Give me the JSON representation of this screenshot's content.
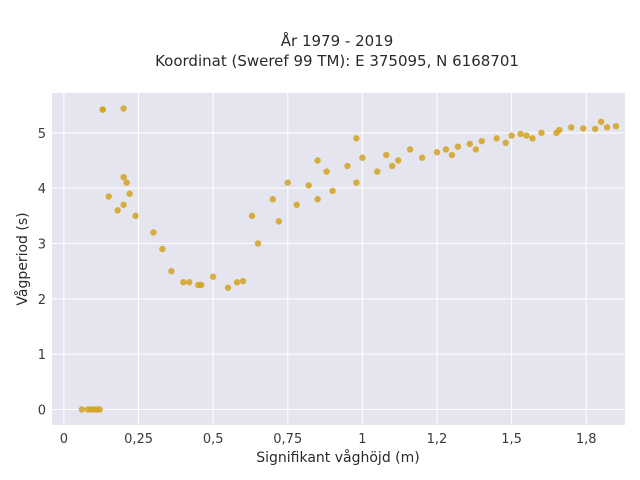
{
  "chart_data": {
    "type": "scatter",
    "title_line1": "År 1979 - 2019",
    "title_line2": "Koordinat (Sweref 99 TM): E 375095, N 6168701",
    "xlabel": "Signifikant våghöjd (m)",
    "ylabel": "Vågperiod (s)",
    "xlim": [
      -0.04,
      1.88
    ],
    "ylim": [
      -0.28,
      5.72
    ],
    "x_ticks": [
      0,
      0.25,
      0.5,
      0.75,
      1,
      1.25,
      1.5,
      1.75
    ],
    "x_tick_labels": [
      "0",
      "0,25",
      "0,5",
      "0,75",
      "1",
      "1,2",
      "1,5",
      "1,8"
    ],
    "y_ticks": [
      0,
      1,
      2,
      3,
      4,
      5
    ],
    "y_tick_labels": [
      "0",
      "1",
      "2",
      "3",
      "4",
      "5"
    ],
    "grid": true,
    "colors": {
      "marker": "#d4a21f",
      "plot_bg": "#e5e5ef",
      "grid": "#ffffff"
    },
    "points_x": [
      0.06,
      0.08,
      0.09,
      0.1,
      0.11,
      0.12,
      0.13,
      0.13,
      0.2,
      0.2,
      0.21,
      0.22,
      0.2,
      0.24,
      0.15,
      0.18,
      0.3,
      0.33,
      0.36,
      0.42,
      0.46,
      0.5,
      0.55,
      0.58,
      0.6,
      0.63,
      0.65,
      0.7,
      0.72,
      0.75,
      0.78,
      0.82,
      0.85,
      0.88,
      0.9,
      0.95,
      0.98,
      1.0,
      1.05,
      1.08,
      1.12,
      1.16,
      1.2,
      1.25,
      1.28,
      1.32,
      1.36,
      1.4,
      1.45,
      1.5,
      1.53,
      1.57,
      1.6,
      1.66,
      1.7,
      1.74,
      1.78,
      1.8,
      1.82,
      1.85,
      1.65,
      1.55,
      1.48,
      1.38,
      1.3,
      1.1,
      0.98,
      0.85,
      0.4,
      0.45
    ],
    "points_y": [
      0.0,
      0.0,
      0.0,
      0.0,
      0.0,
      0.0,
      5.42,
      5.42,
      5.44,
      4.2,
      4.1,
      3.9,
      3.7,
      3.5,
      3.85,
      3.6,
      3.2,
      2.9,
      2.5,
      2.3,
      2.25,
      2.4,
      2.2,
      2.3,
      2.32,
      3.5,
      3.0,
      3.8,
      3.4,
      4.1,
      3.7,
      4.05,
      3.8,
      4.3,
      3.95,
      4.4,
      4.1,
      4.55,
      4.3,
      4.6,
      4.5,
      4.7,
      4.55,
      4.65,
      4.7,
      4.75,
      4.8,
      4.85,
      4.9,
      4.95,
      4.98,
      4.9,
      5.0,
      5.05,
      5.1,
      5.08,
      5.07,
      5.2,
      5.1,
      5.12,
      5.0,
      4.95,
      4.82,
      4.7,
      4.6,
      4.4,
      4.9,
      4.5,
      2.3,
      2.25
    ]
  }
}
